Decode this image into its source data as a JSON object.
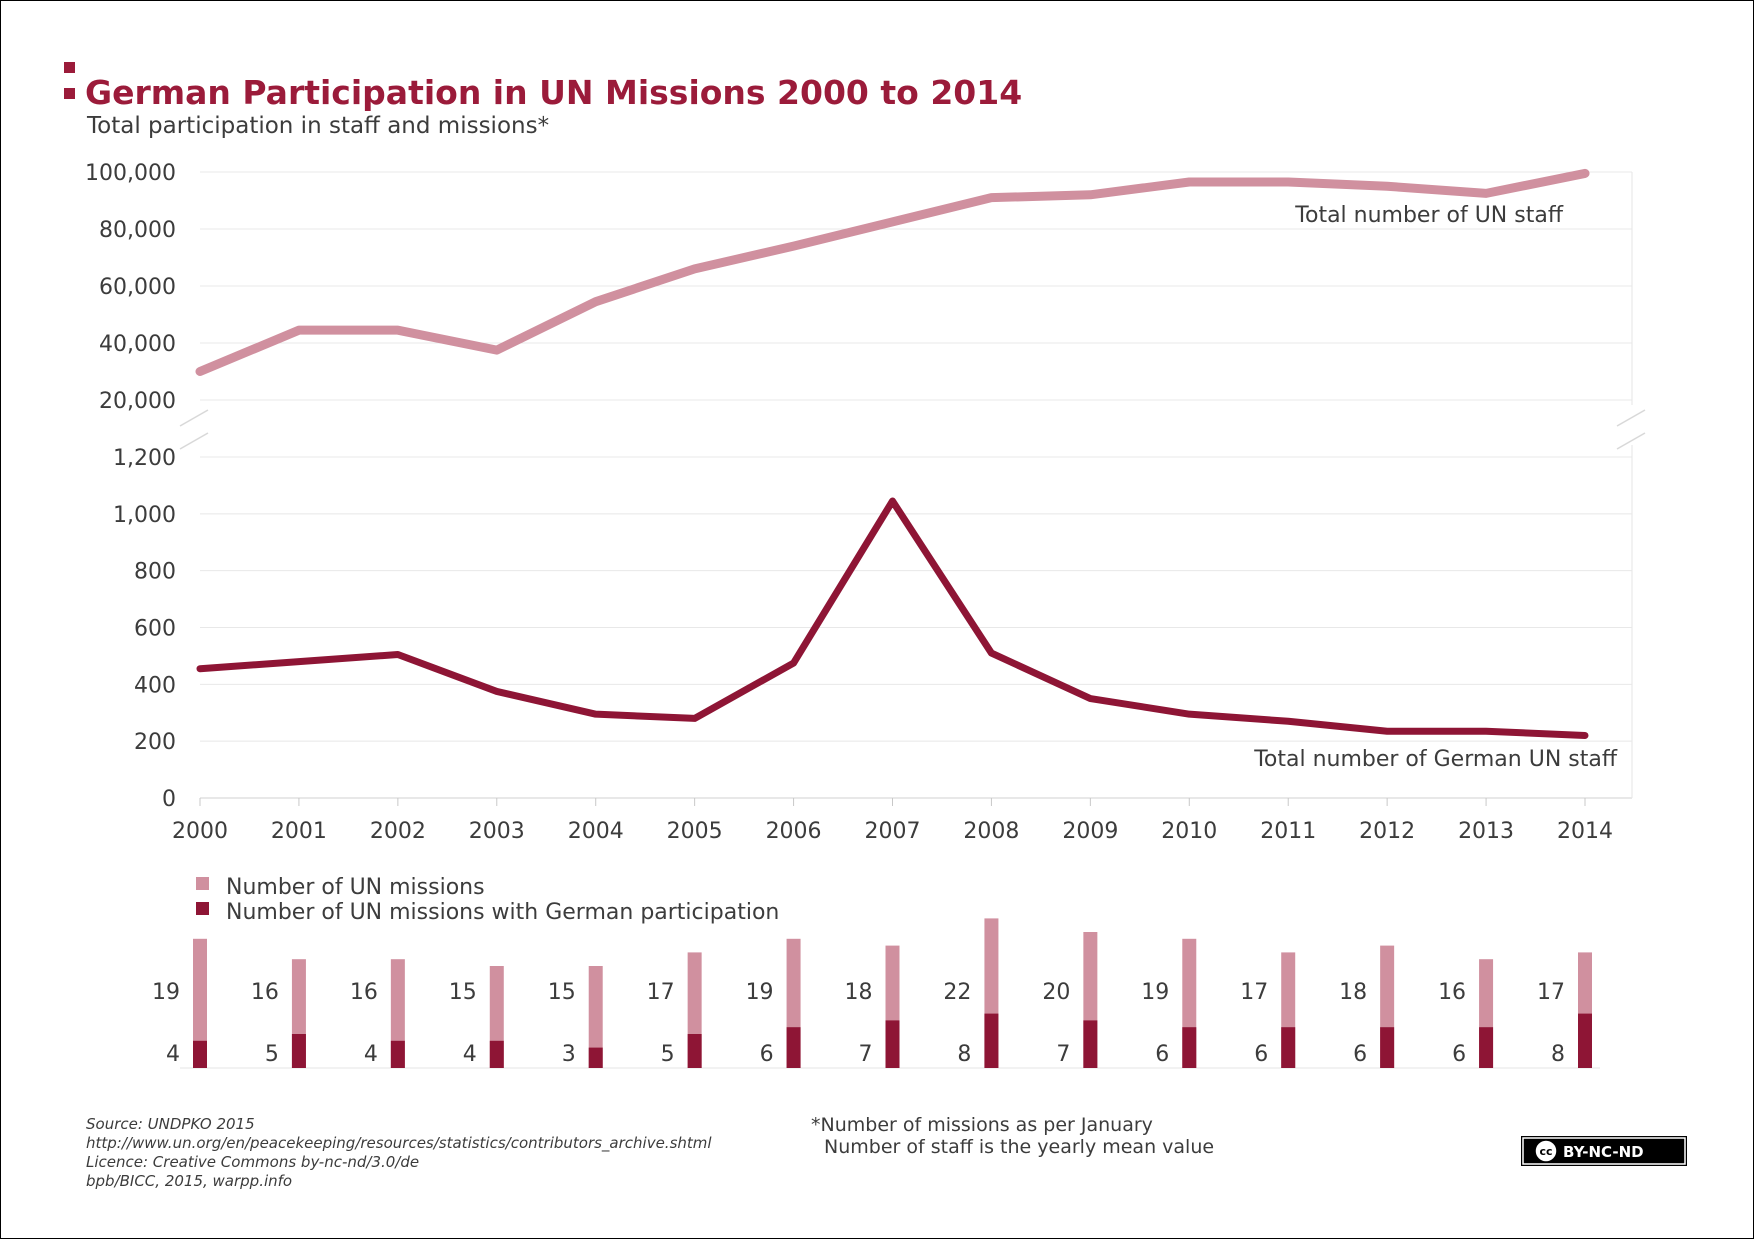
{
  "title": "German Participation in UN Missions 2000 to 2014",
  "subtitle": "Total participation in staff and missions*",
  "colors": {
    "accent": "#9b1b3a",
    "light": "#d0909f",
    "dark": "#8e1535",
    "grid": "#e8e8e8",
    "text": "#3c3c3c"
  },
  "chart_data": [
    {
      "type": "line",
      "x": [
        2000,
        2001,
        2002,
        2003,
        2004,
        2005,
        2006,
        2007,
        2008,
        2009,
        2010,
        2011,
        2012,
        2013,
        2014
      ],
      "series": [
        {
          "name": "Total number of UN staff",
          "values": [
            30000,
            44500,
            44500,
            37500,
            54500,
            66000,
            74000,
            82500,
            91000,
            92000,
            96500,
            96500,
            95000,
            92500,
            99500
          ]
        }
      ],
      "ylim": [
        20000,
        100000
      ],
      "yticks": [
        "20,000",
        "40,000",
        "60,000",
        "80,000",
        "100,000"
      ],
      "grid": true
    },
    {
      "type": "line",
      "x": [
        2000,
        2001,
        2002,
        2003,
        2004,
        2005,
        2006,
        2007,
        2008,
        2009,
        2010,
        2011,
        2012,
        2013,
        2014
      ],
      "xticks": [
        "2000",
        "2001",
        "2002",
        "2003",
        "2004",
        "2005",
        "2006",
        "2007",
        "2008",
        "2009",
        "2010",
        "2011",
        "2012",
        "2013",
        "2014"
      ],
      "series": [
        {
          "name": "Total number of German UN staff",
          "values": [
            455,
            480,
            505,
            375,
            295,
            280,
            475,
            1045,
            510,
            350,
            295,
            270,
            235,
            235,
            220
          ]
        }
      ],
      "ylim": [
        0,
        1200
      ],
      "yticks": [
        "0",
        "200",
        "400",
        "600",
        "800",
        "1,000",
        "1,200"
      ],
      "grid": true
    },
    {
      "type": "bar",
      "categories": [
        "2000",
        "2001",
        "2002",
        "2003",
        "2004",
        "2005",
        "2006",
        "2007",
        "2008",
        "2009",
        "2010",
        "2011",
        "2012",
        "2013",
        "2014"
      ],
      "series": [
        {
          "name": "Number of UN missions",
          "values": [
            19,
            16,
            16,
            15,
            15,
            17,
            19,
            18,
            22,
            20,
            19,
            17,
            18,
            16,
            17
          ]
        },
        {
          "name": "Number of UN missions with German participation",
          "values": [
            4,
            5,
            4,
            4,
            3,
            5,
            6,
            7,
            8,
            7,
            6,
            6,
            6,
            6,
            8
          ]
        }
      ],
      "legend": "top-left"
    }
  ],
  "footer": {
    "source_lines": [
      "Source: UNDPKO 2015",
      "http://www.un.org/en/peacekeeping/resources/statistics/contributors_archive.shtml",
      "Licence: Creative Commons by-nc-nd/3.0/de",
      "bpb/BICC, 2015, warpp.info"
    ],
    "note_lines": [
      "*Number of missions as per January",
      "Number of staff is the yearly mean value"
    ],
    "license_badge": "BY-NC-ND",
    "license_icon": "cc"
  }
}
